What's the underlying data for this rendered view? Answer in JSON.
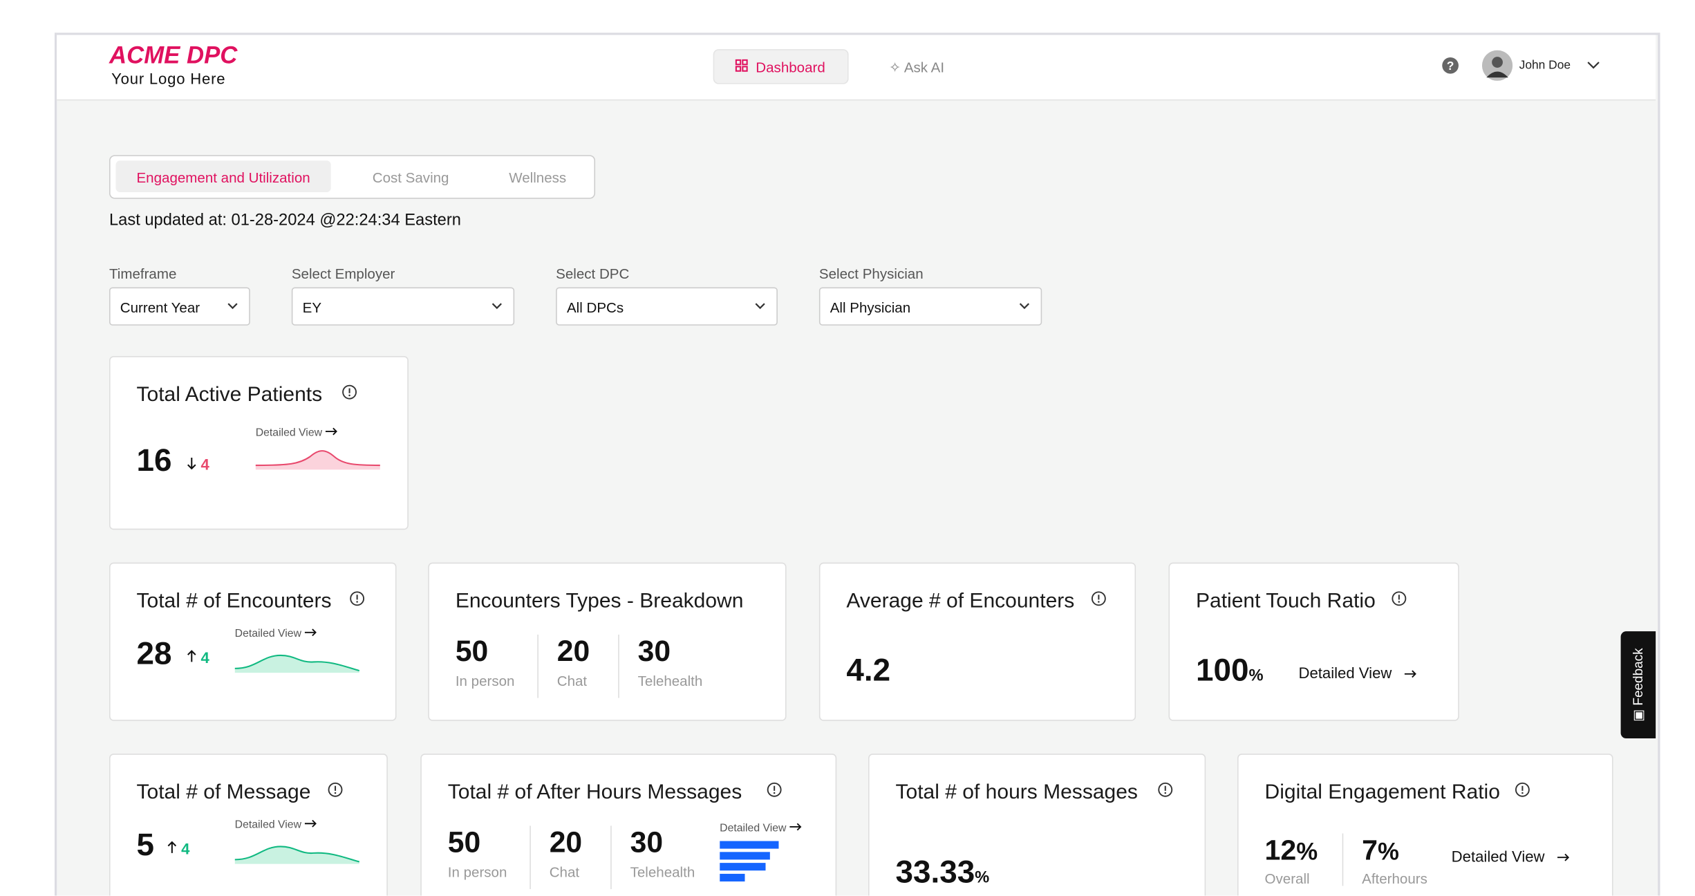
{
  "header": {
    "logo_title": "ACME DPC",
    "logo_subtitle": "Your Logo Here",
    "nav": [
      "Dashboard",
      "Ask AI"
    ],
    "user": "John Doe"
  },
  "tabs": [
    "Engagement and Utilization",
    "Cost Saving",
    "Wellness"
  ],
  "last_updated": "Last updated at: 01-28-2024 @22:24:34 Eastern",
  "filters": [
    {
      "label": "Timeframe",
      "value": "Current Year"
    },
    {
      "label": "Select Employer",
      "value": "EY"
    },
    {
      "label": "Select DPC",
      "value": "All DPCs"
    },
    {
      "label": "Select Physician",
      "value": "All Physician"
    }
  ],
  "cards": [
    {
      "title": "Total Active Patients",
      "value": "16",
      "change": "4",
      "link": "Detailed View"
    },
    {
      "title": "Total # of Encounters",
      "value": "28",
      "change": "4",
      "link": "Detailed View"
    },
    {
      "title": "Encounters Types - Breakdown",
      "items": [
        {
          "value": "50",
          "label": "In person"
        },
        {
          "value": "20",
          "label": "Chat"
        },
        {
          "value": "30",
          "label": "Telehealth"
        }
      ]
    },
    {
      "title": "Average # of Encounters",
      "value": "4.2"
    },
    {
      "title": "Patient Touch Ratio",
      "value": "100",
      "unit": "%",
      "link": "Detailed View"
    },
    {
      "title": "Total # of Message",
      "value": "5",
      "change": "4",
      "link": "Detailed View"
    },
    {
      "title": "Total # of After Hours Messages",
      "items": [
        {
          "value": "50",
          "label": "In person"
        },
        {
          "value": "20",
          "label": "Chat"
        },
        {
          "value": "30",
          "label": "Telehealth"
        }
      ],
      "link": "Detailed View"
    },
    {
      "title": "Total # of hours Messages",
      "value": "33.33",
      "unit": "%"
    },
    {
      "title": "Digital Engagement Ratio",
      "items": [
        {
          "value": "12",
          "unit": "%",
          "label": "Overall"
        },
        {
          "value": "7",
          "unit": "%",
          "label": "Afterhours"
        }
      ],
      "link": "Detailed View"
    }
  ],
  "feedback": "Feedback"
}
